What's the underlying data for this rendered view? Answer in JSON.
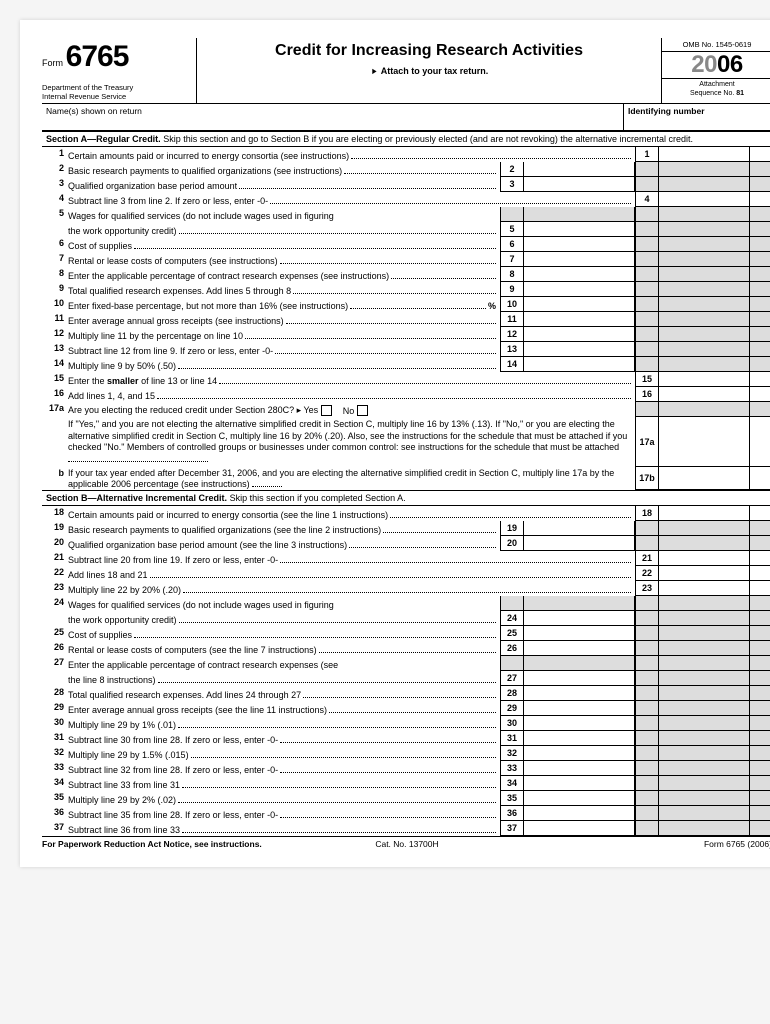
{
  "header": {
    "formWord": "Form",
    "formNo": "6765",
    "dept1": "Department of the Treasury",
    "dept2": "Internal Revenue Service",
    "title": "Credit for Increasing Research Activities",
    "attach": "Attach to your tax return.",
    "omb": "OMB No. 1545-0619",
    "year1": "20",
    "year2": "06",
    "attLabel": "Attachment",
    "seqLabel": "Sequence No.",
    "seqNo": "81"
  },
  "names": {
    "label": "Name(s) shown on return",
    "idLabel": "Identifying number"
  },
  "secA": {
    "title": "Section A—Regular Credit.",
    "note": "Skip this section and go to Section B if you are electing or previously elected (and are not revoking) the alternative incremental credit."
  },
  "secB": {
    "title": "Section B—Alternative Incremental Credit.",
    "note": "Skip this section if you completed Section A."
  },
  "A": {
    "l1": "Certain amounts paid or incurred to energy consortia (see instructions)",
    "l2": "Basic research payments to qualified organizations (see instructions)",
    "l3": "Qualified organization base period amount",
    "l4": "Subtract line 3 from line 2. If zero or less, enter -0-",
    "l5a": "Wages for qualified services (do not include wages used in figuring",
    "l5b": "the work opportunity credit)",
    "l6": "Cost of supplies",
    "l7": "Rental or lease costs of computers (see instructions)",
    "l8": "Enter the applicable percentage of contract research expenses (see instructions)",
    "l9": "Total qualified research expenses. Add lines 5 through 8",
    "l10": "Enter fixed-base percentage, but not more than 16% (see instructions)",
    "l11": "Enter average annual gross receipts (see instructions)",
    "l12": "Multiply line 11 by the percentage on line 10",
    "l13": "Subtract line 12 from line 9. If zero or less, enter -0-",
    "l14": "Multiply line 9 by 50% (.50)",
    "l15": "Enter the smaller of line 13 or line 14",
    "l16": "Add lines 1, 4, and 15",
    "l17a": "Are you electing the reduced credit under Section 280C? ▸ Yes",
    "l17aNo": "No",
    "note17": "If \"Yes,\" and you are not electing the alternative simplified credit in Section C, multiply line 16 by 13% (.13). If \"No,\" or you are electing the alternative simplified credit in Section C, multiply line 16 by 20% (.20). Also, see the instructions for the schedule that must be attached if you checked \"No.\" Members of controlled groups or businesses under common control: see instructions for the schedule that must be attached",
    "l17b": "If your tax year ended after December 31, 2006, and you are electing the alternative simplified credit in Section C, multiply line 17a by the applicable 2006 percentage (see instructions)"
  },
  "B": {
    "l18": "Certain amounts paid or incurred to energy consortia (see the line 1 instructions)",
    "l19": "Basic research payments to qualified organizations (see the line 2 instructions)",
    "l20": "Qualified organization base period amount (see the line 3 instructions)",
    "l21": "Subtract line 20 from line 19. If zero or less, enter -0-",
    "l22": "Add lines 18 and 21",
    "l23": "Multiply line 22 by 20% (.20)",
    "l24a": "Wages for qualified services (do not include wages used in figuring",
    "l24b": "the work opportunity credit)",
    "l25": "Cost of supplies",
    "l26": "Rental or lease costs of computers (see the line 7 instructions)",
    "l27a": "Enter the applicable percentage of contract research expenses (see",
    "l27b": "the line 8 instructions)",
    "l28": "Total qualified research expenses. Add lines 24 through 27",
    "l29": "Enter average annual gross receipts (see the line 11 instructions)",
    "l30": "Multiply line 29 by 1% (.01)",
    "l31": "Subtract line 30 from line 28. If zero or less, enter -0-",
    "l32": "Multiply line 29 by 1.5% (.015)",
    "l33": "Subtract line 32 from line 28. If zero or less, enter -0-",
    "l34": "Subtract line 33 from line 31",
    "l35": "Multiply line 29 by 2% (.02)",
    "l36": "Subtract line 35 from line 28. If zero or less, enter -0-",
    "l37": "Subtract line 36 from line 33"
  },
  "foot": {
    "pra": "For Paperwork Reduction Act Notice, see instructions.",
    "cat": "Cat. No. 13700H",
    "form": "Form 6765 (2006)"
  }
}
